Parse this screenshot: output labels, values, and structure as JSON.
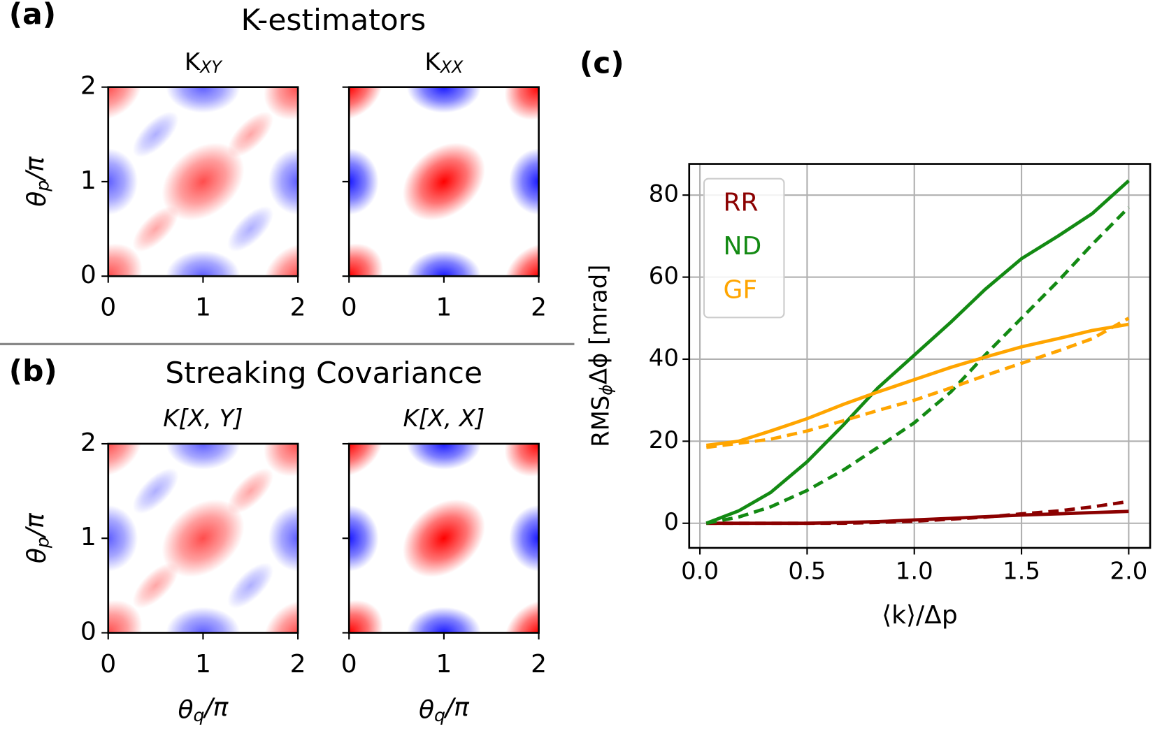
{
  "panels": [
    {
      "label": "(a)",
      "title": "K-estimators",
      "maps": [
        {
          "title": {
            "main": "K",
            "sub": "XY"
          }
        },
        {
          "title": {
            "main": "K",
            "sub": "XX"
          }
        }
      ],
      "xlim": [
        0,
        2
      ],
      "ylim": [
        0,
        2
      ],
      "xticks": [
        0,
        1,
        2
      ],
      "yticks": [
        0,
        1,
        2
      ],
      "ylabel": {
        "base": "θ",
        "sub": "p",
        "rest": "/π"
      }
    },
    {
      "label": "(b)",
      "title": "Streaking Covariance",
      "maps": [
        {
          "title": {
            "main": "K[X, Y]"
          }
        },
        {
          "title": {
            "main": "K[X, X]"
          }
        }
      ],
      "xlim": [
        0,
        2
      ],
      "ylim": [
        0,
        2
      ],
      "xticks": [
        0,
        1,
        2
      ],
      "yticks": [
        0,
        1,
        2
      ],
      "ylabel": {
        "base": "θ",
        "sub": "p",
        "rest": "/π"
      },
      "xlabel": {
        "base": "θ",
        "sub": "q",
        "rest": "/π"
      }
    }
  ],
  "chart_data": {
    "type": "line",
    "label": "(c)",
    "x": [
      0.03,
      0.18,
      0.33,
      0.5,
      0.67,
      0.83,
      1.0,
      1.17,
      1.33,
      1.5,
      1.67,
      1.83,
      2.0
    ],
    "series": [
      {
        "name": "RR",
        "color": "#8b0000",
        "values": [
          0,
          0,
          0,
          0,
          0.2,
          0.4,
          0.8,
          1.2,
          1.6,
          2,
          2.3,
          2.6,
          2.9
        ],
        "dashed_values": [
          0,
          0,
          0,
          0,
          0,
          0.2,
          0.5,
          1,
          1.5,
          2.3,
          3,
          4,
          5.3
        ]
      },
      {
        "name": "ND",
        "color": "#138a13",
        "values": [
          0,
          3,
          7.5,
          15,
          24,
          33,
          41,
          49,
          57,
          64.5,
          70,
          75.5,
          83.5
        ],
        "dashed_values": [
          0,
          1.5,
          4,
          8,
          13,
          18.5,
          24.5,
          32,
          41,
          50,
          59,
          68,
          77
        ]
      },
      {
        "name": "GF",
        "color": "#ffa500",
        "values": [
          19,
          20,
          22.5,
          25.5,
          29,
          32,
          35,
          38,
          40.5,
          43,
          45,
          47,
          48.5
        ],
        "dashed_values": [
          18.5,
          19.5,
          20.5,
          22.5,
          25,
          27.5,
          30,
          33,
          36,
          39,
          42,
          45,
          50
        ]
      }
    ],
    "xlim": [
      -0.05,
      2.1
    ],
    "ylim": [
      -6,
      87.6
    ],
    "xticks": [
      {
        "value": 0,
        "label": "0.0"
      },
      0.5,
      {
        "value": 1,
        "label": "1.0"
      },
      1.5,
      {
        "value": 2,
        "label": "2.0"
      }
    ],
    "yticks": [
      0,
      20,
      40,
      60,
      80
    ],
    "xlabel": "⟨k⟩/Δp",
    "ylabel": {
      "base": "RMS",
      "sub": "ϕ",
      "rest": "Δϕ [mrad]"
    },
    "grid": true,
    "legend": "upper left"
  }
}
